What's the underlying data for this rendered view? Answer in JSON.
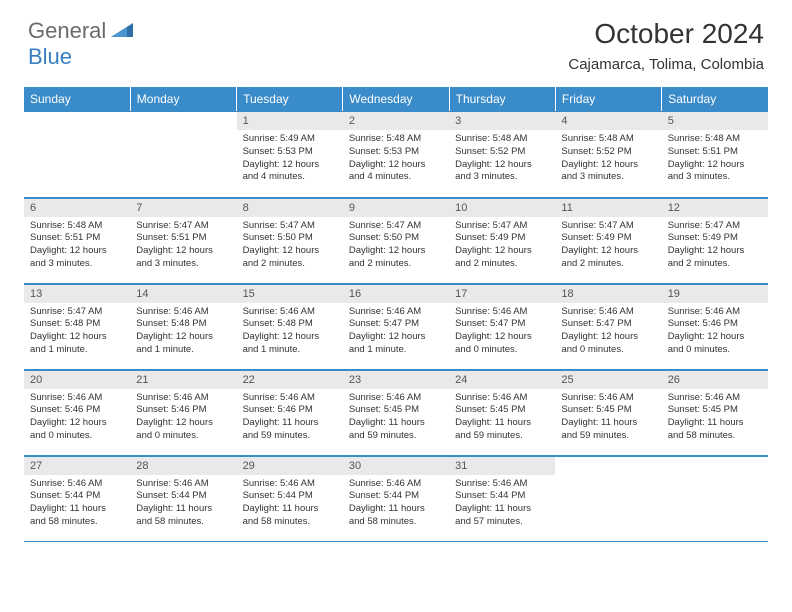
{
  "brand": {
    "part1": "General",
    "part2": "Blue"
  },
  "title": "October 2024",
  "location": "Cajamarca, Tolima, Colombia",
  "colors": {
    "header_bg": "#3a8bc9",
    "header_text": "#ffffff",
    "daynum_bg": "#e9e9e9",
    "border": "#3a8bc9",
    "logo_gray": "#6b6b6b",
    "logo_blue": "#3a7fc4"
  },
  "dayNames": [
    "Sunday",
    "Monday",
    "Tuesday",
    "Wednesday",
    "Thursday",
    "Friday",
    "Saturday"
  ],
  "weeks": [
    [
      null,
      null,
      {
        "n": "1",
        "sunrise": "5:49 AM",
        "sunset": "5:53 PM",
        "daylight": "12 hours and 4 minutes."
      },
      {
        "n": "2",
        "sunrise": "5:48 AM",
        "sunset": "5:53 PM",
        "daylight": "12 hours and 4 minutes."
      },
      {
        "n": "3",
        "sunrise": "5:48 AM",
        "sunset": "5:52 PM",
        "daylight": "12 hours and 3 minutes."
      },
      {
        "n": "4",
        "sunrise": "5:48 AM",
        "sunset": "5:52 PM",
        "daylight": "12 hours and 3 minutes."
      },
      {
        "n": "5",
        "sunrise": "5:48 AM",
        "sunset": "5:51 PM",
        "daylight": "12 hours and 3 minutes."
      }
    ],
    [
      {
        "n": "6",
        "sunrise": "5:48 AM",
        "sunset": "5:51 PM",
        "daylight": "12 hours and 3 minutes."
      },
      {
        "n": "7",
        "sunrise": "5:47 AM",
        "sunset": "5:51 PM",
        "daylight": "12 hours and 3 minutes."
      },
      {
        "n": "8",
        "sunrise": "5:47 AM",
        "sunset": "5:50 PM",
        "daylight": "12 hours and 2 minutes."
      },
      {
        "n": "9",
        "sunrise": "5:47 AM",
        "sunset": "5:50 PM",
        "daylight": "12 hours and 2 minutes."
      },
      {
        "n": "10",
        "sunrise": "5:47 AM",
        "sunset": "5:49 PM",
        "daylight": "12 hours and 2 minutes."
      },
      {
        "n": "11",
        "sunrise": "5:47 AM",
        "sunset": "5:49 PM",
        "daylight": "12 hours and 2 minutes."
      },
      {
        "n": "12",
        "sunrise": "5:47 AM",
        "sunset": "5:49 PM",
        "daylight": "12 hours and 2 minutes."
      }
    ],
    [
      {
        "n": "13",
        "sunrise": "5:47 AM",
        "sunset": "5:48 PM",
        "daylight": "12 hours and 1 minute."
      },
      {
        "n": "14",
        "sunrise": "5:46 AM",
        "sunset": "5:48 PM",
        "daylight": "12 hours and 1 minute."
      },
      {
        "n": "15",
        "sunrise": "5:46 AM",
        "sunset": "5:48 PM",
        "daylight": "12 hours and 1 minute."
      },
      {
        "n": "16",
        "sunrise": "5:46 AM",
        "sunset": "5:47 PM",
        "daylight": "12 hours and 1 minute."
      },
      {
        "n": "17",
        "sunrise": "5:46 AM",
        "sunset": "5:47 PM",
        "daylight": "12 hours and 0 minutes."
      },
      {
        "n": "18",
        "sunrise": "5:46 AM",
        "sunset": "5:47 PM",
        "daylight": "12 hours and 0 minutes."
      },
      {
        "n": "19",
        "sunrise": "5:46 AM",
        "sunset": "5:46 PM",
        "daylight": "12 hours and 0 minutes."
      }
    ],
    [
      {
        "n": "20",
        "sunrise": "5:46 AM",
        "sunset": "5:46 PM",
        "daylight": "12 hours and 0 minutes."
      },
      {
        "n": "21",
        "sunrise": "5:46 AM",
        "sunset": "5:46 PM",
        "daylight": "12 hours and 0 minutes."
      },
      {
        "n": "22",
        "sunrise": "5:46 AM",
        "sunset": "5:46 PM",
        "daylight": "11 hours and 59 minutes."
      },
      {
        "n": "23",
        "sunrise": "5:46 AM",
        "sunset": "5:45 PM",
        "daylight": "11 hours and 59 minutes."
      },
      {
        "n": "24",
        "sunrise": "5:46 AM",
        "sunset": "5:45 PM",
        "daylight": "11 hours and 59 minutes."
      },
      {
        "n": "25",
        "sunrise": "5:46 AM",
        "sunset": "5:45 PM",
        "daylight": "11 hours and 59 minutes."
      },
      {
        "n": "26",
        "sunrise": "5:46 AM",
        "sunset": "5:45 PM",
        "daylight": "11 hours and 58 minutes."
      }
    ],
    [
      {
        "n": "27",
        "sunrise": "5:46 AM",
        "sunset": "5:44 PM",
        "daylight": "11 hours and 58 minutes."
      },
      {
        "n": "28",
        "sunrise": "5:46 AM",
        "sunset": "5:44 PM",
        "daylight": "11 hours and 58 minutes."
      },
      {
        "n": "29",
        "sunrise": "5:46 AM",
        "sunset": "5:44 PM",
        "daylight": "11 hours and 58 minutes."
      },
      {
        "n": "30",
        "sunrise": "5:46 AM",
        "sunset": "5:44 PM",
        "daylight": "11 hours and 58 minutes."
      },
      {
        "n": "31",
        "sunrise": "5:46 AM",
        "sunset": "5:44 PM",
        "daylight": "11 hours and 57 minutes."
      },
      null,
      null
    ]
  ],
  "labels": {
    "sunrise": "Sunrise:",
    "sunset": "Sunset:",
    "daylight": "Daylight:"
  }
}
